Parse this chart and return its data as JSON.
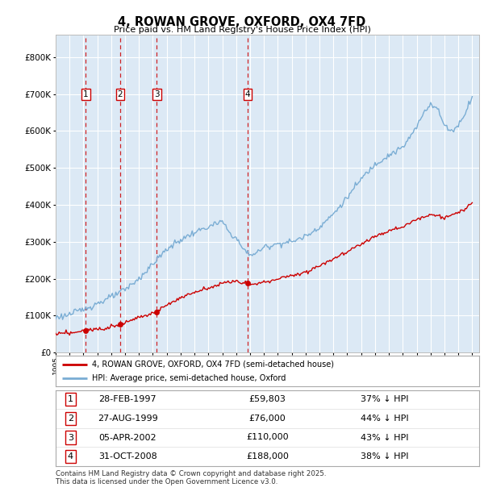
{
  "title": "4, ROWAN GROVE, OXFORD, OX4 7FD",
  "subtitle": "Price paid vs. HM Land Registry's House Price Index (HPI)",
  "ytick_values": [
    0,
    100000,
    200000,
    300000,
    400000,
    500000,
    600000,
    700000,
    800000
  ],
  "ylim": [
    0,
    860000
  ],
  "xlim_start": 1995.0,
  "xlim_end": 2025.5,
  "plot_bg_color": "#dce9f5",
  "grid_color": "#ffffff",
  "sale_dates": [
    1997.16,
    1999.65,
    2002.27,
    2008.83
  ],
  "sale_prices": [
    59803,
    76000,
    110000,
    188000
  ],
  "sale_labels": [
    "1",
    "2",
    "3",
    "4"
  ],
  "dashed_line_color": "#cc0000",
  "sale_marker_color": "#cc0000",
  "hpi_line_color": "#7aadd4",
  "property_line_color": "#cc0000",
  "legend_label_property": "4, ROWAN GROVE, OXFORD, OX4 7FD (semi-detached house)",
  "legend_label_hpi": "HPI: Average price, semi-detached house, Oxford",
  "table_rows": [
    {
      "num": "1",
      "date": "28-FEB-1997",
      "price": "£59,803",
      "pct": "37% ↓ HPI"
    },
    {
      "num": "2",
      "date": "27-AUG-1999",
      "price": "£76,000",
      "pct": "44% ↓ HPI"
    },
    {
      "num": "3",
      "date": "05-APR-2002",
      "price": "£110,000",
      "pct": "43% ↓ HPI"
    },
    {
      "num": "4",
      "date": "31-OCT-2008",
      "price": "£188,000",
      "pct": "38% ↓ HPI"
    }
  ],
  "footer_text": "Contains HM Land Registry data © Crown copyright and database right 2025.\nThis data is licensed under the Open Government Licence v3.0."
}
